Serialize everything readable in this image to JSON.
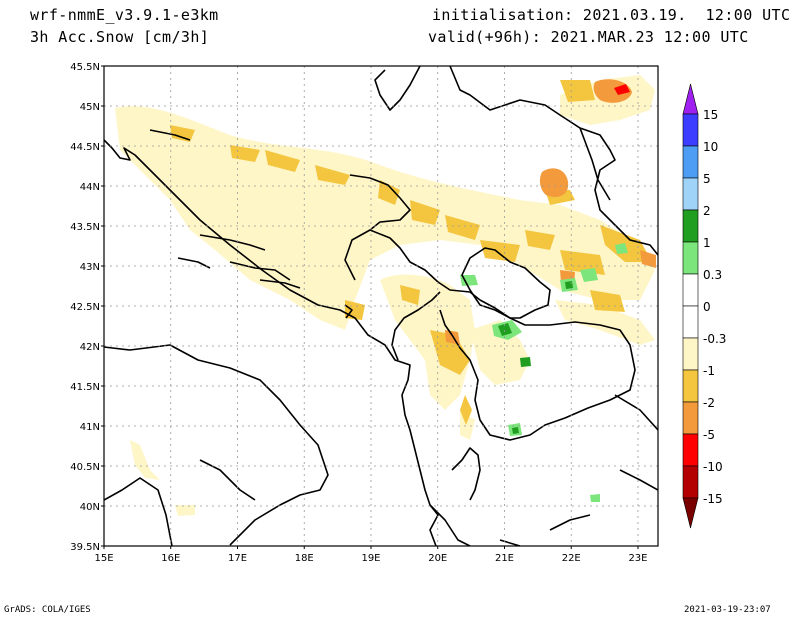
{
  "header": {
    "model": "wrf-nmmE_v3.9.1-e3km",
    "field": "3h Acc.Snow [cm/3h]",
    "init": "initialisation: 2021.03.19.  12:00 UTC",
    "valid": "valid(+96h): 2021.MAR.23 12:00 UTC"
  },
  "footer": {
    "credit": "GrADS: COLA/IGES",
    "timestamp": "2021-03-19-23:07"
  },
  "map": {
    "lon_range": [
      15,
      23.3
    ],
    "lat_range": [
      39.5,
      45.5
    ],
    "lat_ticks": [
      "45.5N",
      "45N",
      "44.5N",
      "44N",
      "43.5N",
      "43N",
      "42.5N",
      "42N",
      "41.5N",
      "41N",
      "40.5N",
      "40N",
      "39.5N"
    ],
    "lon_ticks": [
      "15E",
      "16E",
      "17E",
      "18E",
      "19E",
      "20E",
      "21E",
      "22E",
      "23E"
    ],
    "grid": true
  },
  "colorbar": {
    "labels": [
      "15",
      "10",
      "5",
      "2",
      "1",
      "0.3",
      "0",
      "-0.3",
      "-1",
      "-2",
      "-5",
      "-10",
      "-15"
    ],
    "colors": {
      "top_arrow": "#a020f0",
      "c1": "#3d3dff",
      "c2": "#4d9df5",
      "c3": "#9fd3f7",
      "c4": "#1f9e1f",
      "c5": "#7ce67c",
      "c6": "#ffffff",
      "c7": "#ffffff",
      "c8": "#fff6c8",
      "c9": "#f4c63f",
      "c10": "#f39a3c",
      "c11": "#ff0000",
      "c12": "#b30000",
      "bottom_arrow": "#7a0000"
    }
  }
}
